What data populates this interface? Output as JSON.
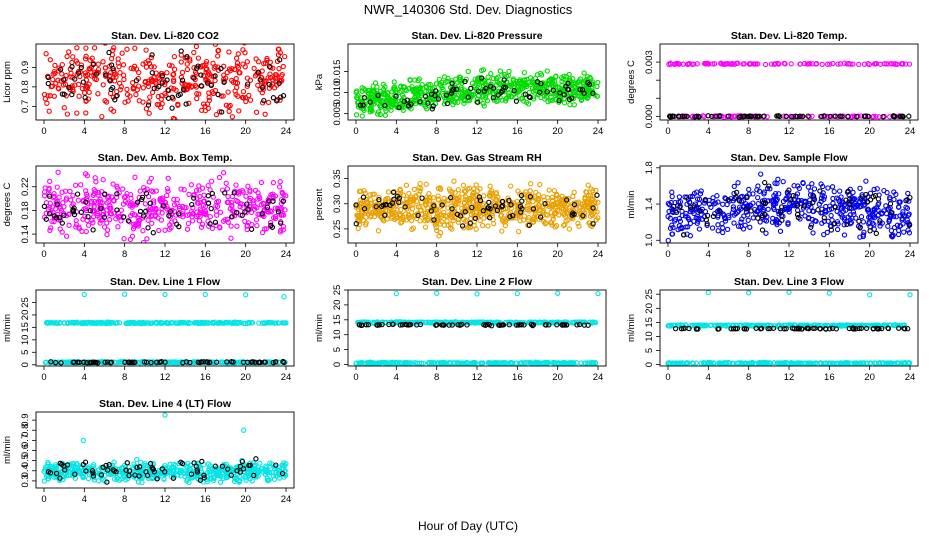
{
  "figure": {
    "title": "NWR_140306  Std. Dev. Diagnostics",
    "xlabel": "Hour of Day (UTC)"
  },
  "chart_data": [
    {
      "type": "scatter",
      "title": "Stan. Dev. Li-820 CO2",
      "ylabel": "Licor ppm",
      "xlim": [
        0,
        24
      ],
      "ylim": [
        0.63,
        1.02
      ],
      "xticks": [
        0,
        4,
        8,
        12,
        16,
        20,
        24
      ],
      "yticks": [
        0.7,
        0.8,
        0.9
      ],
      "ytick_labels": [
        "0.7",
        "0.8",
        "0.9"
      ],
      "series": [
        {
          "color": "#ff0000",
          "mean": 0.84,
          "spread": 0.08,
          "count": 420
        },
        {
          "color": "#000000",
          "mean": 0.82,
          "spread": 0.07,
          "count": 70
        }
      ]
    },
    {
      "type": "scatter",
      "title": "Stan. Dev. Li-820 Pressure",
      "ylabel": "kPa",
      "xlim": [
        0,
        24
      ],
      "ylim": [
        0.0035,
        0.0215
      ],
      "xticks": [
        0,
        4,
        8,
        12,
        16,
        20,
        24
      ],
      "yticks": [
        0.005,
        0.01,
        0.015
      ],
      "ytick_labels": [
        "0.005",
        "0.010",
        "0.015"
      ],
      "series": [
        {
          "color": "#00dd00",
          "mean": 0.01,
          "spread": 0.0018,
          "count": 700,
          "trend": "rise"
        },
        {
          "color": "#000000",
          "mean": 0.0095,
          "spread": 0.0015,
          "count": 70,
          "trend": "rise"
        }
      ]
    },
    {
      "type": "scatter",
      "title": "Stan. Dev. Li-820 Temp.",
      "ylabel": "degrees C",
      "xlim": [
        0,
        24
      ],
      "ylim": [
        -0.0002,
        0.004
      ],
      "xticks": [
        0,
        4,
        8,
        12,
        16,
        20,
        24
      ],
      "yticks": [
        0.0,
        0.001,
        0.002,
        0.003
      ],
      "ytick_labels": [
        "0.000",
        "",
        "",
        "0.003"
      ],
      "series": [
        {
          "color": "#ff00ff",
          "levels": [
            0.0,
            0.0029
          ],
          "count": 200
        },
        {
          "color": "#000000",
          "levels": [
            0.0
          ],
          "count": 70
        }
      ]
    },
    {
      "type": "scatter",
      "title": "Stan. Dev. Amb. Box Temp.",
      "ylabel": "degrees C",
      "xlim": [
        0,
        24
      ],
      "ylim": [
        0.125,
        0.255
      ],
      "xticks": [
        0,
        4,
        8,
        12,
        16,
        20,
        24
      ],
      "yticks": [
        0.14,
        0.18,
        0.22
      ],
      "ytick_labels": [
        "0.14",
        "0.18",
        "0.22"
      ],
      "series": [
        {
          "color": "#ff00ff",
          "mean": 0.185,
          "spread": 0.022,
          "count": 480
        },
        {
          "color": "#000000",
          "mean": 0.183,
          "spread": 0.018,
          "count": 70
        }
      ]
    },
    {
      "type": "scatter",
      "title": "Stan. Dev. Gas Stream RH",
      "ylabel": "percent",
      "xlim": [
        0,
        24
      ],
      "ylim": [
        0.222,
        0.375
      ],
      "xticks": [
        0,
        4,
        8,
        12,
        16,
        20,
        24
      ],
      "yticks": [
        0.25,
        0.3,
        0.35
      ],
      "ytick_labels": [
        "0.25",
        "0.30",
        "0.35"
      ],
      "series": [
        {
          "color": "#e8a000",
          "mean": 0.292,
          "spread": 0.02,
          "count": 700
        },
        {
          "color": "#000000",
          "mean": 0.292,
          "spread": 0.017,
          "count": 70
        }
      ]
    },
    {
      "type": "scatter",
      "title": "Stan. Dev. Sample Flow",
      "ylabel": "ml/min",
      "xlim": [
        0,
        24
      ],
      "ylim": [
        0.97,
        1.82
      ],
      "xticks": [
        0,
        4,
        8,
        12,
        16,
        20,
        24
      ],
      "yticks": [
        1.0,
        1.4,
        1.8
      ],
      "ytick_labels": [
        "1.0",
        "1.4",
        "1.8"
      ],
      "series": [
        {
          "color": "#0000ee",
          "mean": 1.3,
          "spread": 0.13,
          "count": 520,
          "trend": "hump"
        },
        {
          "color": "#000000",
          "mean": 1.3,
          "spread": 0.12,
          "count": 70,
          "trend": "hump"
        }
      ]
    },
    {
      "type": "scatter",
      "title": "Stan. Dev. Line 1 Flow",
      "ylabel": "ml/min",
      "xlim": [
        0,
        24
      ],
      "ylim": [
        -0.5,
        30
      ],
      "xticks": [
        0,
        4,
        8,
        12,
        16,
        20,
        24
      ],
      "yticks": [
        0,
        5,
        10,
        15,
        20,
        25
      ],
      "ytick_labels": [
        "0",
        "5",
        "10",
        "15",
        "20",
        "25"
      ],
      "series": [
        {
          "color": "#00e5e5",
          "levels": [
            16.8,
            1.0
          ],
          "count": 500
        },
        {
          "color": "#000000",
          "levels": [
            1.0
          ],
          "count": 70
        }
      ],
      "outliers": [
        [
          4,
          28.2
        ],
        [
          8,
          28.3
        ],
        [
          12,
          28.2
        ],
        [
          16,
          28.2
        ],
        [
          20,
          28.1
        ],
        [
          23.8,
          27.3
        ]
      ]
    },
    {
      "type": "scatter",
      "title": "Stan. Dev. Line 2 Flow",
      "ylabel": "ml/min",
      "xlim": [
        0,
        24
      ],
      "ylim": [
        -0.5,
        25
      ],
      "xticks": [
        0,
        4,
        8,
        12,
        16,
        20,
        24
      ],
      "yticks": [
        0,
        5,
        10,
        15,
        20,
        25
      ],
      "ytick_labels": [
        "0",
        "5",
        "10",
        "15",
        "20",
        "25"
      ],
      "series": [
        {
          "color": "#00e5e5",
          "levels": [
            14.1,
            0.5
          ],
          "count": 500
        },
        {
          "color": "#000000",
          "levels": [
            13.3
          ],
          "count": 70
        }
      ],
      "outliers": [
        [
          4,
          23.8
        ],
        [
          8,
          23.9
        ],
        [
          12,
          23.7
        ],
        [
          16,
          23.8
        ],
        [
          20,
          23.9
        ],
        [
          24,
          23.8
        ]
      ]
    },
    {
      "type": "scatter",
      "title": "Stan. Dev. Line 3 Flow",
      "ylabel": "ml/min",
      "xlim": [
        0,
        24
      ],
      "ylim": [
        -0.5,
        26.5
      ],
      "xticks": [
        0,
        4,
        8,
        12,
        16,
        20,
        24
      ],
      "yticks": [
        0,
        5,
        10,
        15,
        20,
        25
      ],
      "ytick_labels": [
        "0",
        "5",
        "10",
        "15",
        "20",
        "25"
      ],
      "series": [
        {
          "color": "#00e5e5",
          "levels": [
            13.9,
            0.5
          ],
          "count": 500
        },
        {
          "color": "#000000",
          "levels": [
            12.8
          ],
          "count": 70
        }
      ],
      "outliers": [
        [
          4,
          25.6
        ],
        [
          8,
          25.5
        ],
        [
          12,
          25.7
        ],
        [
          16,
          25.4
        ],
        [
          20,
          24.8
        ],
        [
          24,
          24.8
        ]
      ]
    },
    {
      "type": "scatter",
      "title": "Stan. Dev. Line 4 (LT) Flow",
      "ylabel": "ml/min",
      "xlim": [
        0,
        24
      ],
      "ylim": [
        0.23,
        0.98
      ],
      "xticks": [
        0,
        4,
        8,
        12,
        16,
        20,
        24
      ],
      "yticks": [
        0.3,
        0.4,
        0.5,
        0.6,
        0.7,
        0.8,
        0.9
      ],
      "ytick_labels": [
        "0.3",
        "0.4",
        "0.5",
        "0.6",
        "0.7",
        "0.8",
        "0.9"
      ],
      "series": [
        {
          "color": "#00e5e5",
          "mean": 0.39,
          "spread": 0.045,
          "count": 520
        },
        {
          "color": "#000000",
          "mean": 0.41,
          "spread": 0.05,
          "count": 70
        }
      ],
      "outliers": [
        [
          3.9,
          0.7
        ],
        [
          12,
          0.95
        ],
        [
          19.8,
          0.8
        ]
      ]
    }
  ]
}
